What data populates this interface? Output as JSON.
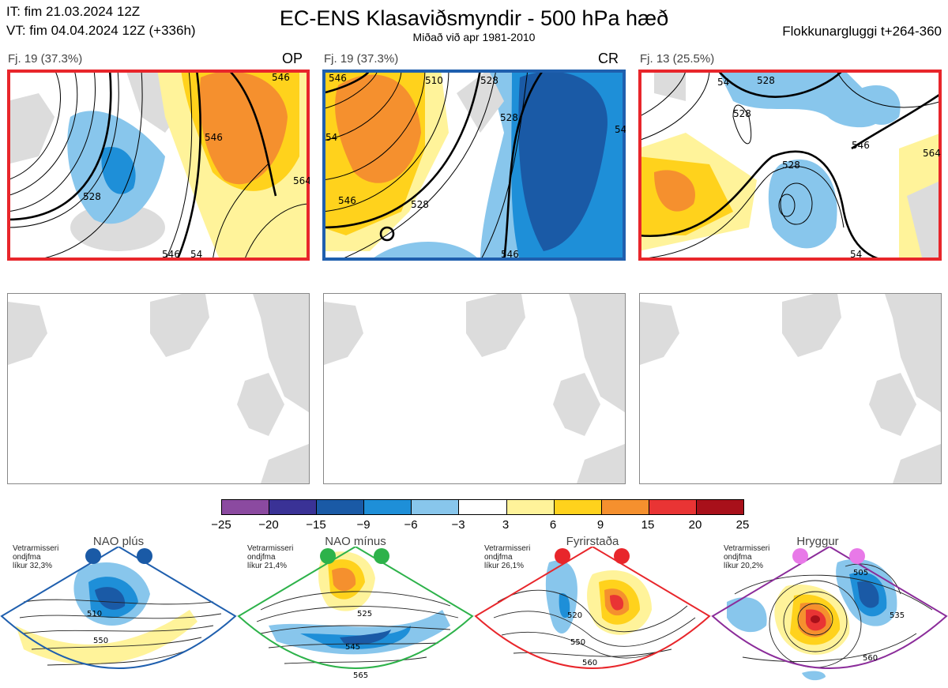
{
  "header": {
    "init_time": "IT: fim 21.03.2024 12Z",
    "valid_time": "VT: fim 04.04.2024 12Z  (+336h)",
    "title": "EC-ENS Klasaviðsmyndir - 500 hPa hæð",
    "subtitle": "Miðað við apr 1981-2010",
    "window": "Flokkunargluggi t+264-360"
  },
  "panels": [
    {
      "label": "Fj. 19 (37.3%)",
      "tag": "OP",
      "border": "#e8262b",
      "contours": [
        "528",
        "546",
        "546",
        "564",
        "546",
        "54"
      ]
    },
    {
      "label": "Fj. 19 (37.3%)",
      "tag": "CR",
      "border": "#1f5fae",
      "contours": [
        "546",
        "528",
        "528",
        "510",
        "546",
        "546",
        "54",
        "546",
        "528"
      ]
    },
    {
      "label": "Fj. 13 (25.5%)",
      "tag": "",
      "border": "#e8262b",
      "contours": [
        "528",
        "528",
        "546",
        "54",
        "564",
        "528",
        "54"
      ]
    }
  ],
  "colorbar": {
    "ticks": [
      "−25",
      "−20",
      "−15",
      "−9",
      "−6",
      "−3",
      "3",
      "6",
      "9",
      "15",
      "20",
      "25"
    ],
    "colors": [
      "#8b4aa0",
      "#3a3296",
      "#1a5aa6",
      "#1e8fd8",
      "#88c6ec",
      "#ffffff",
      "#fff39a",
      "#ffd21c",
      "#f5902e",
      "#e93434",
      "#a8101a"
    ]
  },
  "regimes": [
    {
      "name": "NAO plús",
      "note": [
        "Vetrarmisseri",
        "ondjfma",
        "líkur 32,3%"
      ],
      "dot_color": "#1a5aa6",
      "frame": "#1f5fae",
      "contours": [
        "510",
        "550"
      ]
    },
    {
      "name": "NAO mínus",
      "note": [
        "Vetrarmisseri",
        "ondjfma",
        "líkur 21,4%"
      ],
      "dot_color": "#2db24a",
      "frame": "#2db24a",
      "contours": [
        "525",
        "545",
        "565"
      ]
    },
    {
      "name": "Fyrirstaða",
      "note": [
        "Vetrarmisseri",
        "ondjfma",
        "líkur 26,1%"
      ],
      "dot_color": "#e8262b",
      "frame": "#e8262b",
      "contours": [
        "520",
        "550",
        "560"
      ]
    },
    {
      "name": "Hryggur",
      "note": [
        "Vetrarmisseri",
        "ondjfma",
        "líkur 20,2%"
      ],
      "dot_color": "#e879e8",
      "frame": "#8b2c9a",
      "contours": [
        "505",
        "535",
        "560"
      ]
    }
  ]
}
